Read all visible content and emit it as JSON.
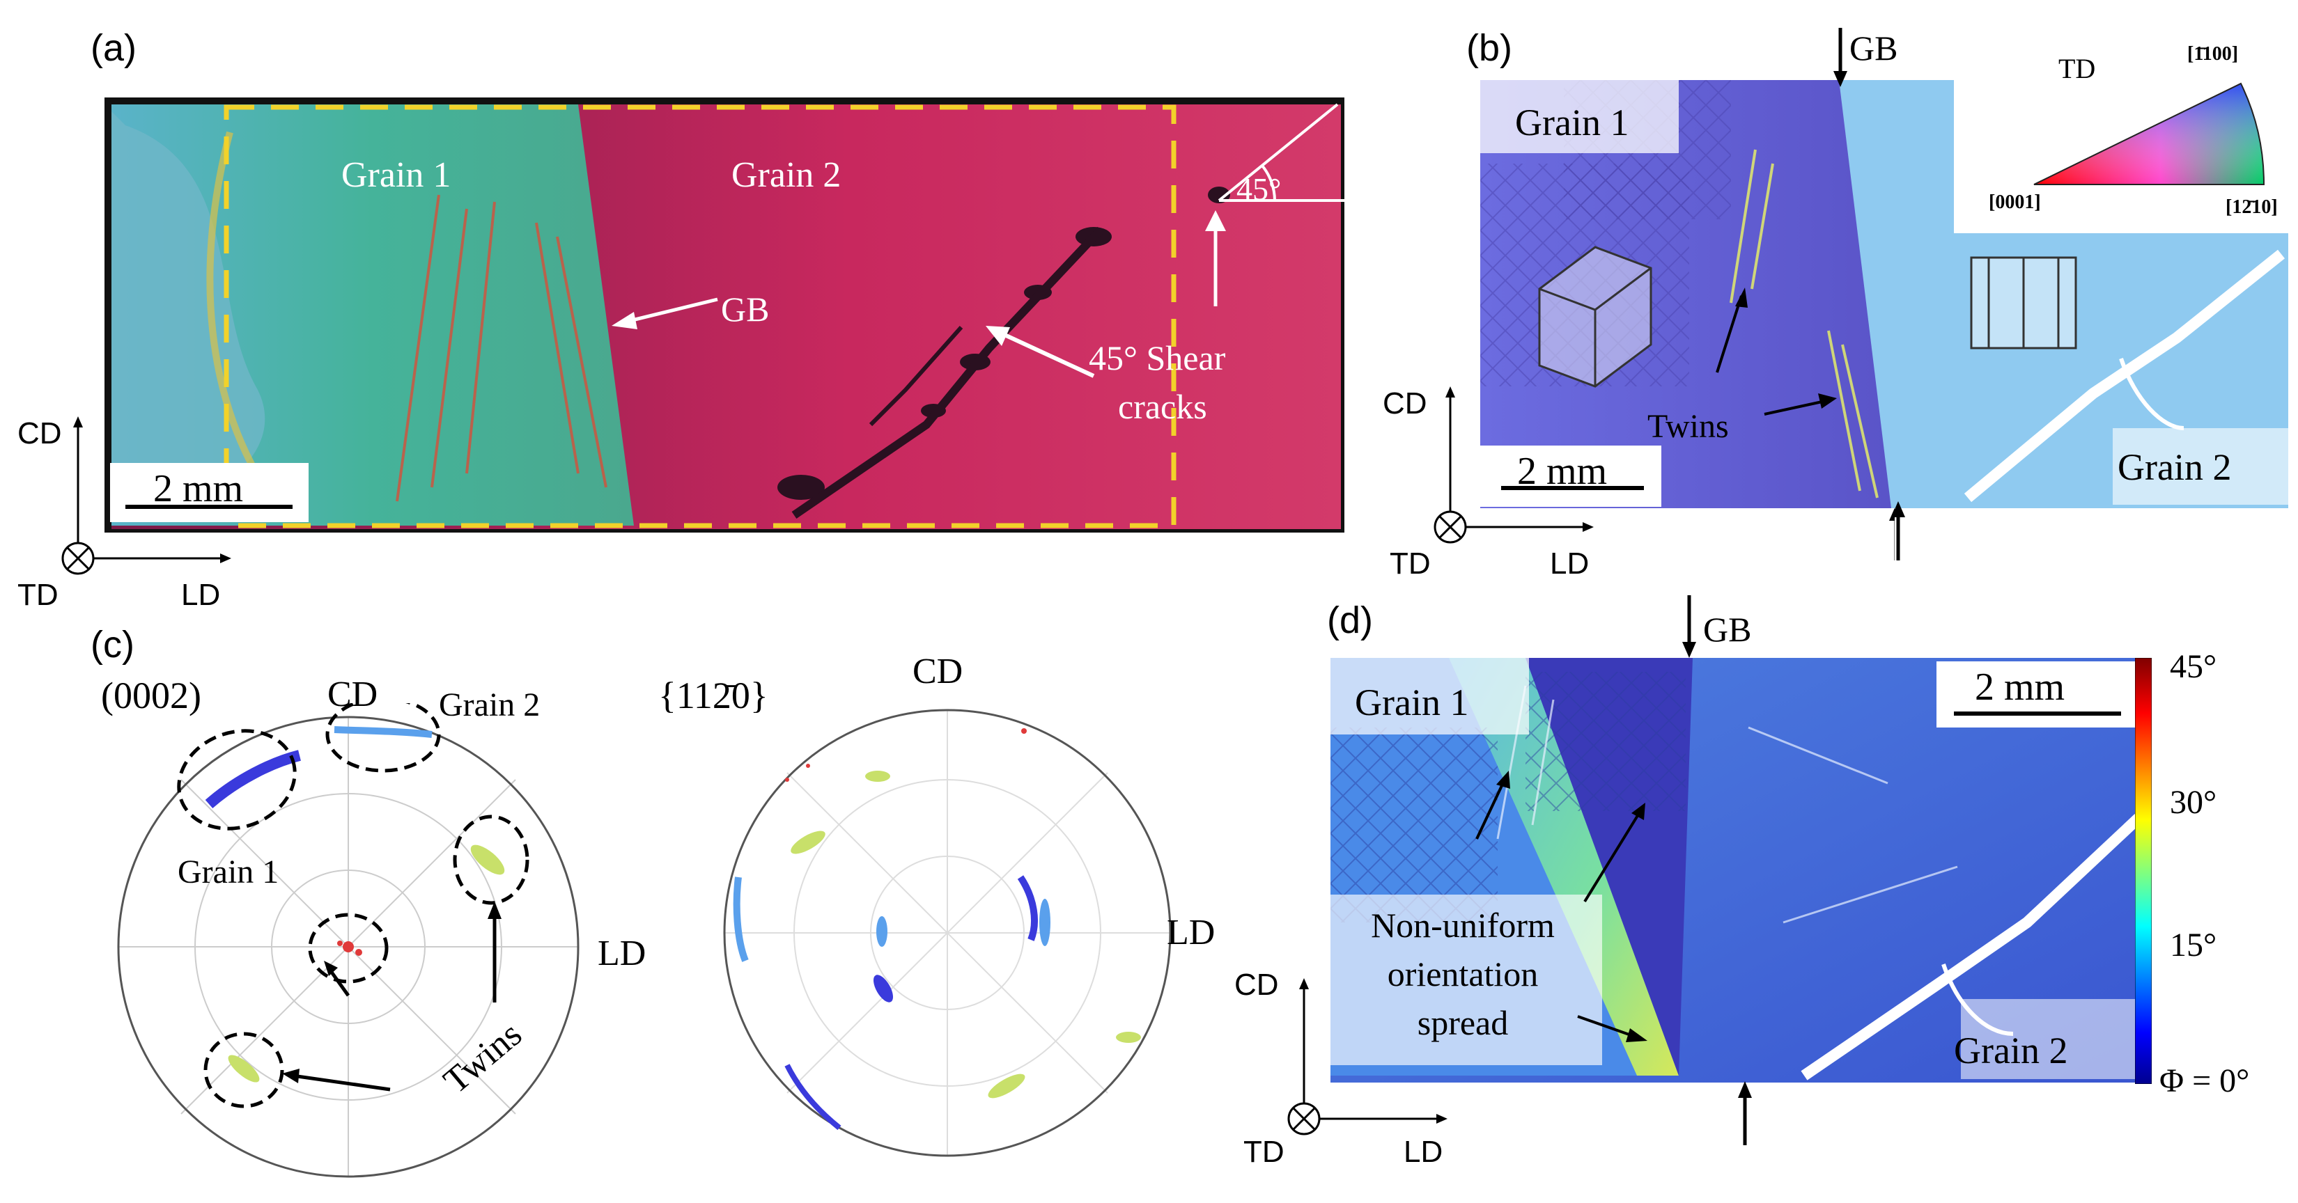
{
  "panels": {
    "a": {
      "label": "(a)",
      "grain1": "Grain 1",
      "grain2": "Grain 2",
      "gb": "GB",
      "angle": "45°",
      "shear_line1": "45° Shear",
      "shear_line2": "cracks",
      "scale": "2 mm",
      "axes": {
        "cd": "CD",
        "td": "TD",
        "ld": "LD"
      }
    },
    "b": {
      "label": "(b)",
      "gb": "GB",
      "grain1": "Grain 1",
      "grain2": "Grain 2",
      "twins": "Twins",
      "scale": "2 mm",
      "ipf": {
        "td": "TD",
        "top": "[1̄100]",
        "left": "[0001]",
        "right": "[12̄10]"
      },
      "axes": {
        "cd": "CD",
        "td": "TD",
        "ld": "LD"
      }
    },
    "c": {
      "label": "(c)",
      "pf1_title": "(0002)",
      "pf2_title": "{112̄0}",
      "cd1": "CD",
      "cd2": "CD",
      "ld1": "LD",
      "ld2": "LD",
      "grain1": "Grain 1",
      "grain2": "Grain 2",
      "twins": "Twins"
    },
    "d": {
      "label": "(d)",
      "gb": "GB",
      "grain1": "Grain 1",
      "grain2": "Grain 2",
      "scale": "2 mm",
      "note_line1": "Non-uniform",
      "note_line2": "orientation",
      "note_line3": "spread",
      "colorbar": {
        "t45": "45°",
        "t30": "30°",
        "t15": "15°",
        "t0": "Φ = 0°"
      },
      "axes": {
        "cd": "CD",
        "td": "TD",
        "ld": "LD"
      }
    }
  },
  "colors": {
    "grain1_a": "#3fb0a0",
    "grain2_a": "#c02a5c",
    "dash": "#f2d22a",
    "grain1_b": "#6d6ad8",
    "grain2_b": "#7cc0ec",
    "map_d": "#3a5ad8"
  }
}
